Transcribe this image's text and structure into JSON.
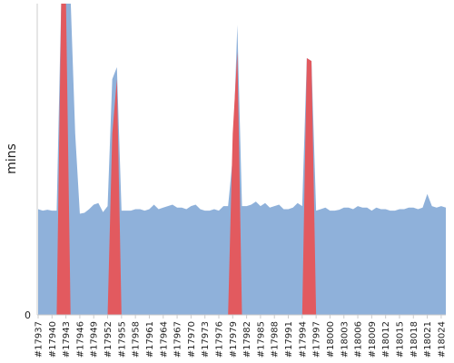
{
  "chart_data": {
    "type": "area",
    "ylabel": "mins",
    "y_ticks": [
      {
        "value": 0,
        "label": "0"
      }
    ],
    "ylim": [
      0,
      100
    ],
    "grid": false,
    "x": [
      17937,
      17938,
      17939,
      17940,
      17941,
      17942,
      17943,
      17944,
      17945,
      17946,
      17947,
      17948,
      17949,
      17950,
      17951,
      17952,
      17953,
      17954,
      17955,
      17956,
      17957,
      17958,
      17959,
      17960,
      17961,
      17962,
      17963,
      17964,
      17965,
      17966,
      17967,
      17968,
      17969,
      17970,
      17971,
      17972,
      17973,
      17974,
      17975,
      17976,
      17977,
      17978,
      17979,
      17980,
      17981,
      17982,
      17983,
      17984,
      17985,
      17986,
      17987,
      17988,
      17989,
      17990,
      17991,
      17992,
      17993,
      17994,
      17995,
      17996,
      17997,
      17998,
      17999,
      18000,
      18001,
      18002,
      18003,
      18004,
      18005,
      18006,
      18007,
      18008,
      18009,
      18010,
      18011,
      18012,
      18013,
      18014,
      18015,
      18016,
      18017,
      18018,
      18019,
      18020,
      18021,
      18022,
      18023,
      18024,
      18025
    ],
    "x_tick_labels": [
      "#17937",
      "#17940",
      "#17943",
      "#17946",
      "#17949",
      "#17952",
      "#17955",
      "#17958",
      "#17961",
      "#17964",
      "#17967",
      "#17970",
      "#17973",
      "#17976",
      "#17979",
      "#17982",
      "#17985",
      "#17988",
      "#17991",
      "#17994",
      "#17997",
      "#18000",
      "#18003",
      "#18006",
      "#18009",
      "#18012",
      "#18015",
      "#18018",
      "#18021",
      "#18024"
    ],
    "series": [
      {
        "values": [
          35,
          34.5,
          34.8,
          34.5,
          34.5,
          105,
          105,
          105,
          60,
          33.5,
          33.8,
          35,
          36.5,
          37,
          34,
          36,
          78,
          82,
          34.5,
          34.5,
          34.5,
          35,
          35,
          34.5,
          35,
          36.5,
          35,
          35.5,
          36,
          36.5,
          35.5,
          35.5,
          35,
          36,
          36.5,
          35,
          34.5,
          34.5,
          35,
          34.5,
          36,
          36,
          52,
          96,
          36,
          36,
          36.5,
          37.5,
          36,
          37,
          35.5,
          36,
          36.5,
          35,
          35,
          35.5,
          37,
          36,
          85,
          84,
          34.5,
          35,
          35.5,
          34.5,
          34.5,
          34.8,
          35.5,
          35.5,
          35,
          36,
          35.5,
          35.5,
          34.5,
          35.5,
          35,
          35,
          34.5,
          34.5,
          35,
          35,
          35.5,
          35.5,
          35,
          35.5,
          40,
          36,
          35.5,
          36,
          35.5
        ],
        "color": "#8fb1da"
      },
      {
        "values": [
          0,
          0,
          0,
          0,
          0,
          105,
          105,
          0,
          0,
          0,
          0,
          0,
          0,
          0,
          0,
          0,
          60,
          78,
          0,
          0,
          0,
          0,
          0,
          0,
          0,
          0,
          0,
          0,
          0,
          0,
          0,
          0,
          0,
          0,
          0,
          0,
          0,
          0,
          0,
          0,
          0,
          0,
          60,
          87,
          0,
          0,
          0,
          0,
          0,
          0,
          0,
          0,
          0,
          0,
          0,
          0,
          0,
          0,
          85,
          84,
          0,
          0,
          0,
          0,
          0,
          0,
          0,
          0,
          0,
          0,
          0,
          0,
          0,
          0,
          0,
          0,
          0,
          0,
          0,
          0,
          0,
          0,
          0,
          0,
          0,
          0,
          0,
          0,
          0
        ],
        "color": "#e25a5f"
      }
    ]
  }
}
